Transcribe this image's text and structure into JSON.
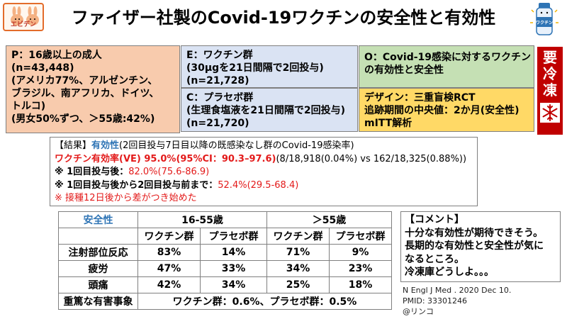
{
  "header": {
    "logo_text": "エビデン",
    "title": "ファイザー社製のCovid-19ワクチンの安全性と有効性",
    "vial_label": "ワクチン"
  },
  "pico": {
    "p_lines": [
      "P：16歳以上の成人",
      "(n=43,448)",
      "(アメリカ77%、アルゼンチン、",
      "ブラジル、南アフリカ、ドイツ、",
      "トルコ)",
      "(男女50%ずつ、＞55歳:42%)"
    ],
    "i_lines": [
      "E：ワクチン群",
      "(30μgを21日間隔で2回投与)",
      "(n=21,728)"
    ],
    "c_lines": [
      "C：プラセボ群",
      "(生理食塩液を21日間隔で2回投与)",
      "(n=21,720)"
    ],
    "o_lines": [
      "O：Covid-19感染に対するワクチン",
      "の有効性と安全性"
    ],
    "d_lines": [
      "デザイン：三重盲検RCT",
      "追跡期間の中央値：2か月(安全性)",
      "mITT解析"
    ]
  },
  "frozen": {
    "chars": [
      "要",
      "冷",
      "凍"
    ]
  },
  "results": {
    "bracket": "【結果】",
    "eff_label": "有効性",
    "eff_desc": "(2回目投与7日目以降の既感染なし群のCovid-19感染率)",
    "ve_main": "ワクチン有効率(VE) 95.0%(95%CI：90.3–97.6)",
    "ve_counts": "(8/18,918(0.04%) vs 162/18,325(0.88%))",
    "l3_label": "※ 1回目投与後：",
    "l3_val": "82.0%(75.6-86.9)",
    "l4_label": "※ 1回目投与後から2回目投与前まで：",
    "l4_val": "52.4%(29.5-68.4)",
    "l5": "※ 接種12日後から差がつき始めた"
  },
  "table": {
    "corner": "安全性",
    "group1": "16-55歳",
    "group2": "＞55歳",
    "sub": [
      "ワクチン群",
      "プラセボ群",
      "ワクチン群",
      "プラセボ群"
    ],
    "rows": [
      {
        "label": "注射部位反応",
        "values": [
          "83%",
          "14%",
          "71%",
          "9%"
        ]
      },
      {
        "label": "疲労",
        "values": [
          "47%",
          "33%",
          "34%",
          "23%"
        ]
      },
      {
        "label": "頭痛",
        "values": [
          "42%",
          "34%",
          "25%",
          "18%"
        ]
      }
    ],
    "serious_label": "重篤な有害事象",
    "serious_value": "ワクチン群：0.6%、プラセボ群：0.5%"
  },
  "comment": {
    "lines": [
      "【コメント】",
      "十分な有効性が期待できそう。",
      "長期的な有効性と安全性が気に",
      "なるところ。",
      "冷凍庫どうしよ。。。"
    ]
  },
  "citation": {
    "lines": [
      "N Engl J Med . 2020 Dec 10.",
      "PMID: 33301246",
      "@リンコ"
    ]
  },
  "colors": {
    "p_bg": "#f8cbad",
    "ic_bg": "#dae3f3",
    "o_bg": "#c5e0b4",
    "d_bg": "#ffd966",
    "accent_red": "#e31a1a",
    "frozen_red": "#c00000",
    "table_blue": "#2e74b5"
  }
}
